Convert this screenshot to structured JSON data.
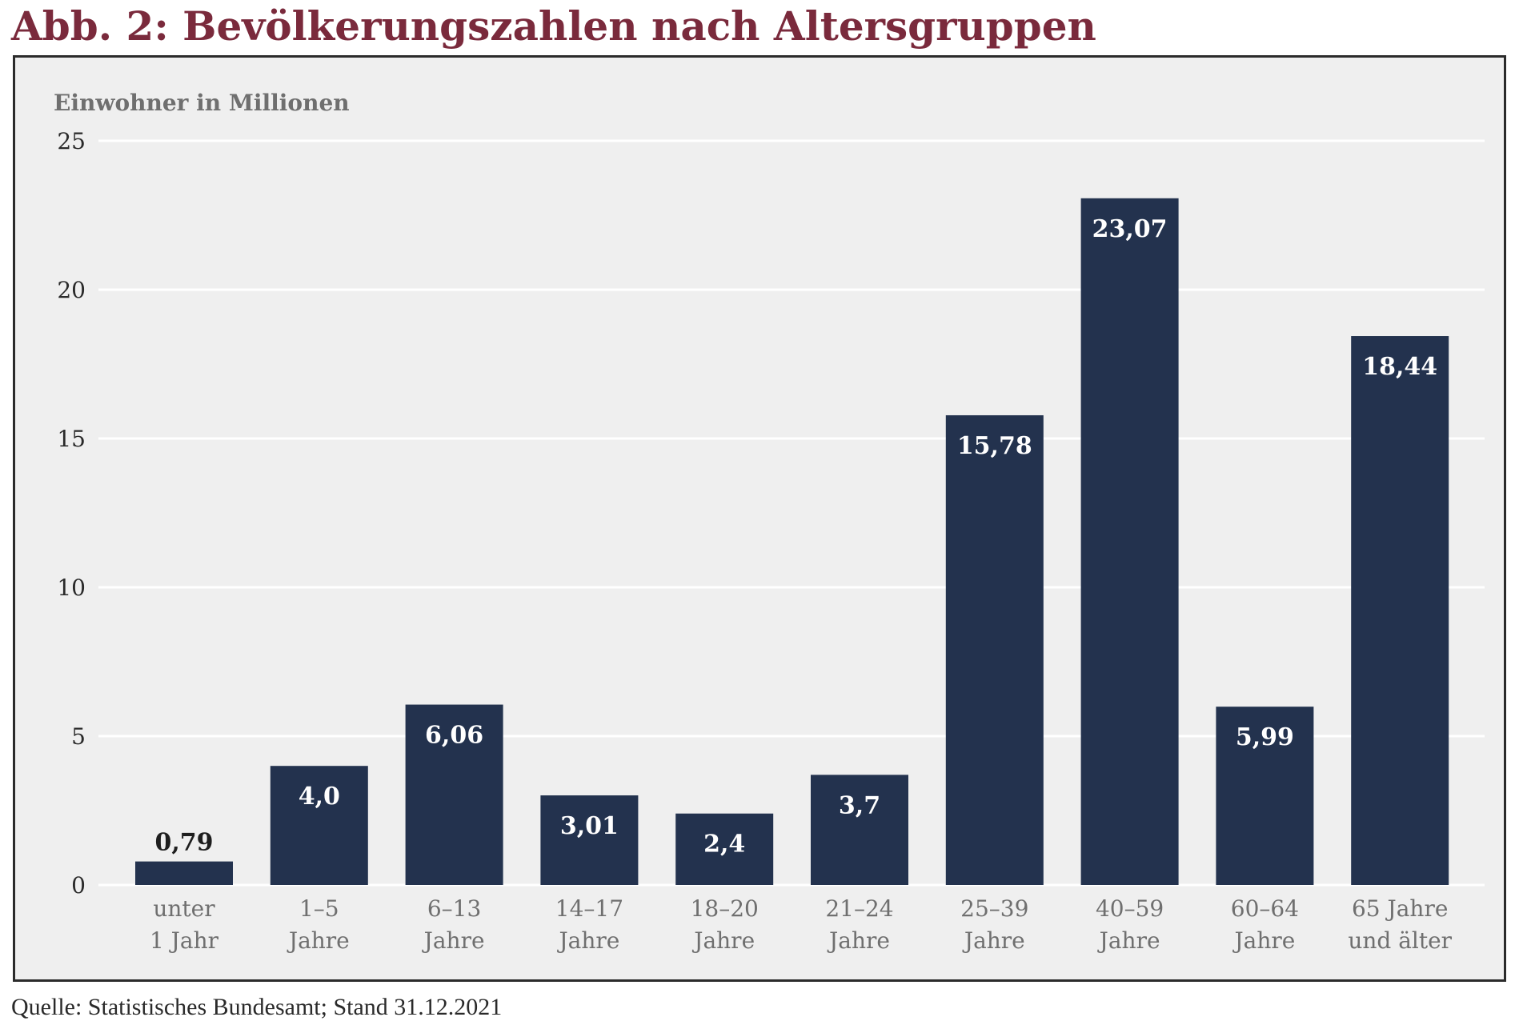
{
  "header": {
    "title": "Abb. 2: Bevölkerungszahlen nach Altersgruppen"
  },
  "footer": {
    "source": "Quelle: Statistisches Bundesamt; Stand 31.12.2021"
  },
  "colors": {
    "title": "#7a2a3c",
    "bar": "#23324e",
    "panel_background": "#efefef",
    "gridline": "#ffffff"
  },
  "chart_data": {
    "type": "bar",
    "title": "Abb. 2: Bevölkerungszahlen nach Altersgruppen",
    "ylabel": "Einwohner in Millionen",
    "xlabel": "",
    "ylim": [
      0,
      25
    ],
    "yticks": [
      "0",
      "5",
      "10",
      "15",
      "20",
      "25"
    ],
    "grid": true,
    "categories": [
      [
        "unter",
        "1 Jahr"
      ],
      [
        "1–5",
        "Jahre"
      ],
      [
        "6–13",
        "Jahre"
      ],
      [
        "14–17",
        "Jahre"
      ],
      [
        "18–20",
        "Jahre"
      ],
      [
        "21–24",
        "Jahre"
      ],
      [
        "25–39",
        "Jahre"
      ],
      [
        "40–59",
        "Jahre"
      ],
      [
        "60–64",
        "Jahre"
      ],
      [
        "65 Jahre",
        "und älter"
      ]
    ],
    "values": [
      0.79,
      4.0,
      6.06,
      3.01,
      2.4,
      3.7,
      15.78,
      23.07,
      5.99,
      18.44
    ],
    "value_labels": [
      "0,79",
      "4,0",
      "6,06",
      "3,01",
      "2,4",
      "3,7",
      "15,78",
      "23,07",
      "5,99",
      "18,44"
    ]
  }
}
